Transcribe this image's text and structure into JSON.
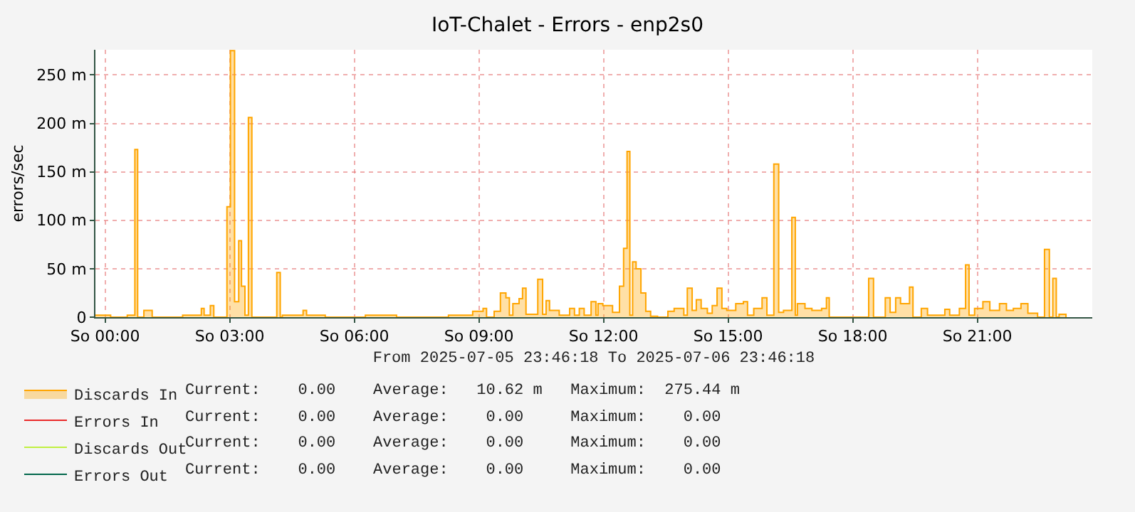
{
  "chart_data": {
    "type": "area",
    "title": "IoT-Chalet - Errors - enp2s0",
    "ylabel": "errors/sec",
    "xlabel": "From 2025-07-05 23:46:18 To 2025-07-06 23:46:18",
    "xlim": [
      "2025-07-05T23:46",
      "2025-07-06T23:46"
    ],
    "xticks": [
      {
        "value": "2025-07-06T00:00",
        "label": "So 00:00"
      },
      {
        "value": "2025-07-06T03:00",
        "label": "So 03:00"
      },
      {
        "value": "2025-07-06T06:00",
        "label": "So 06:00"
      },
      {
        "value": "2025-07-06T09:00",
        "label": "So 09:00"
      },
      {
        "value": "2025-07-06T12:00",
        "label": "So 12:00"
      },
      {
        "value": "2025-07-06T15:00",
        "label": "So 15:00"
      },
      {
        "value": "2025-07-06T18:00",
        "label": "So 18:00"
      },
      {
        "value": "2025-07-06T21:00",
        "label": "So 21:00"
      }
    ],
    "ylim": [
      0,
      276
    ],
    "yticks": [
      0,
      {
        "value": 50,
        "label": "50 m"
      },
      {
        "value": 100,
        "label": "100 m"
      },
      {
        "value": 150,
        "label": "150 m"
      },
      {
        "value": 200,
        "label": "200 m"
      },
      {
        "value": 250,
        "label": "250 m"
      }
    ],
    "grid": true,
    "legend": "bottom",
    "series": [
      {
        "name": "Discards In",
        "color": "#ffa500",
        "x": [
          "2025-07-05T23:46",
          "2025-07-05T23:50",
          "2025-07-06T00:08",
          "2025-07-06T00:32",
          "2025-07-06T00:43",
          "2025-07-06T00:47",
          "2025-07-06T00:56",
          "2025-07-06T01:08",
          "2025-07-06T01:52",
          "2025-07-06T02:19",
          "2025-07-06T02:23",
          "2025-07-06T02:32",
          "2025-07-06T02:37",
          "2025-07-06T02:56",
          "2025-07-06T03:01",
          "2025-07-06T03:07",
          "2025-07-06T03:13",
          "2025-07-06T03:17",
          "2025-07-06T03:22",
          "2025-07-06T03:27",
          "2025-07-06T03:32",
          "2025-07-06T04:08",
          "2025-07-06T04:13",
          "2025-07-06T04:16",
          "2025-07-06T04:46",
          "2025-07-06T04:51",
          "2025-07-06T05:18",
          "2025-07-06T06:16",
          "2025-07-06T07:01",
          "2025-07-06T08:16",
          "2025-07-06T08:51",
          "2025-07-06T09:06",
          "2025-07-06T09:11",
          "2025-07-06T09:22",
          "2025-07-06T09:31",
          "2025-07-06T09:39",
          "2025-07-06T09:44",
          "2025-07-06T09:49",
          "2025-07-06T09:58",
          "2025-07-06T10:03",
          "2025-07-06T10:08",
          "2025-07-06T10:25",
          "2025-07-06T10:32",
          "2025-07-06T10:37",
          "2025-07-06T10:42",
          "2025-07-06T10:56",
          "2025-07-06T11:11",
          "2025-07-06T11:18",
          "2025-07-06T11:25",
          "2025-07-06T11:32",
          "2025-07-06T11:42",
          "2025-07-06T11:49",
          "2025-07-06T11:52",
          "2025-07-06T11:59",
          "2025-07-06T12:13",
          "2025-07-06T12:23",
          "2025-07-06T12:29",
          "2025-07-06T12:34",
          "2025-07-06T12:38",
          "2025-07-06T12:42",
          "2025-07-06T12:47",
          "2025-07-06T12:54",
          "2025-07-06T13:01",
          "2025-07-06T13:08",
          "2025-07-06T13:18",
          "2025-07-06T13:33",
          "2025-07-06T13:42",
          "2025-07-06T13:56",
          "2025-07-06T14:01",
          "2025-07-06T14:08",
          "2025-07-06T14:14",
          "2025-07-06T14:21",
          "2025-07-06T14:30",
          "2025-07-06T14:37",
          "2025-07-06T14:44",
          "2025-07-06T14:51",
          "2025-07-06T14:58",
          "2025-07-06T15:11",
          "2025-07-06T15:22",
          "2025-07-06T15:28",
          "2025-07-06T15:37",
          "2025-07-06T15:49",
          "2025-07-06T15:56",
          "2025-07-06T16:06",
          "2025-07-06T16:13",
          "2025-07-06T16:20",
          "2025-07-06T16:32",
          "2025-07-06T16:37",
          "2025-07-06T16:40",
          "2025-07-06T16:51",
          "2025-07-06T17:01",
          "2025-07-06T17:15",
          "2025-07-06T17:22",
          "2025-07-06T17:26",
          "2025-07-06T18:23",
          "2025-07-06T18:30",
          "2025-07-06T18:47",
          "2025-07-06T18:54",
          "2025-07-06T19:02",
          "2025-07-06T19:09",
          "2025-07-06T19:22",
          "2025-07-06T19:27",
          "2025-07-06T19:39",
          "2025-07-06T19:48",
          "2025-07-06T20:13",
          "2025-07-06T20:20",
          "2025-07-06T20:34",
          "2025-07-06T20:43",
          "2025-07-06T20:48",
          "2025-07-06T20:56",
          "2025-07-06T21:08",
          "2025-07-06T21:18",
          "2025-07-06T21:32",
          "2025-07-06T21:42",
          "2025-07-06T21:52",
          "2025-07-06T22:03",
          "2025-07-06T22:13",
          "2025-07-06T22:27",
          "2025-07-06T22:37",
          "2025-07-06T22:44",
          "2025-07-06T22:49",
          "2025-07-06T22:54",
          "2025-07-06T22:58",
          "2025-07-06T23:08"
        ],
        "values": [
          2,
          2,
          0,
          2,
          173,
          0,
          7,
          0,
          2,
          9,
          2,
          12,
          0,
          114,
          275,
          16,
          79,
          32,
          2,
          206,
          0,
          46,
          0,
          2,
          7,
          2,
          0,
          2,
          0,
          2,
          6,
          9,
          0,
          6,
          25,
          20,
          2,
          14,
          19,
          30,
          3,
          39,
          3,
          17,
          7,
          2,
          9,
          2,
          9,
          2,
          16,
          2,
          14,
          12,
          5,
          32,
          71,
          171,
          2,
          57,
          50,
          25,
          6,
          1,
          0,
          6,
          9,
          2,
          30,
          7,
          18,
          9,
          4,
          12,
          30,
          9,
          7,
          14,
          16,
          2,
          9,
          20,
          2,
          158,
          5,
          7,
          103,
          2,
          14,
          9,
          7,
          9,
          20,
          0,
          40,
          0,
          20,
          5,
          20,
          14,
          31,
          0,
          9,
          2,
          8,
          2,
          9,
          54,
          2,
          9,
          16,
          7,
          14,
          7,
          9,
          14,
          4,
          0,
          70,
          0,
          40,
          0,
          3,
          0
        ]
      },
      {
        "name": "Errors In",
        "type": "line",
        "color": "#ea2a2a"
      },
      {
        "name": "Discards Out",
        "type": "line",
        "color": "#c0f040"
      },
      {
        "name": "Errors Out",
        "type": "line",
        "color": "#00664a"
      }
    ],
    "annotations": [
      "Current:    0.00    Average:   10.62 m   Maximum:  275.44 m",
      "Current:    0.00    Average:    0.00     Maximum:    0.00",
      "Current:    0.00    Average:    0.00     Maximum:    0.00",
      "Current:    0.00    Average:    0.00     Maximum:    0.00"
    ]
  }
}
